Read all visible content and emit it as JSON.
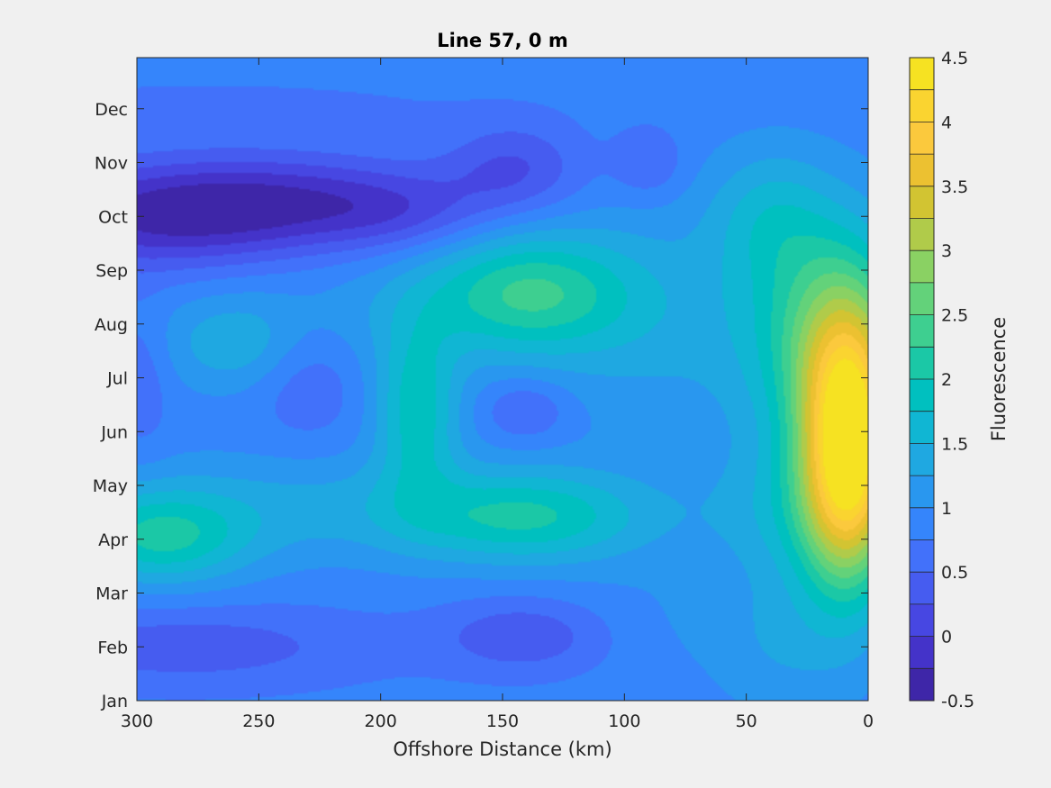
{
  "chart_data": {
    "type": "heatmap",
    "subtype": "filled-contour",
    "title": "Line 57, 0 m",
    "xlabel": "Offshore Distance (km)",
    "ylabel": "",
    "colorbar_label": "Fluorescence",
    "x_reversed": true,
    "xlim": [
      0,
      300
    ],
    "x_ticks": [
      300,
      250,
      200,
      150,
      100,
      50,
      0
    ],
    "y_ticks": [
      "Jan",
      "Feb",
      "Mar",
      "Apr",
      "May",
      "Jun",
      "Jul",
      "Aug",
      "Sep",
      "Oct",
      "Nov",
      "Dec"
    ],
    "y_tick_positions": [
      0,
      1,
      2,
      3,
      4,
      5,
      6,
      7,
      8,
      9,
      10,
      11
    ],
    "ylim": [
      0,
      11.95
    ],
    "clim": [
      -0.5,
      4.5
    ],
    "levels": [
      -0.5,
      -0.25,
      0,
      0.25,
      0.5,
      0.75,
      1,
      1.25,
      1.5,
      1.75,
      2,
      2.25,
      2.5,
      2.75,
      3,
      3.25,
      3.5,
      3.75,
      4,
      4.25,
      4.5
    ],
    "colorbar_ticks": [
      "4.5",
      "4",
      "3.5",
      "3",
      "2.5",
      "2",
      "1.5",
      "1",
      "0.5",
      "0",
      "-0.5"
    ],
    "colorbar_tick_values": [
      4.5,
      4,
      3.5,
      3,
      2.5,
      2,
      1.5,
      1,
      0.5,
      0,
      -0.5
    ],
    "colormap": [
      "#3e26a8",
      "#4433c9",
      "#4747e2",
      "#465cf0",
      "#4271fa",
      "#3585fb",
      "#2997ef",
      "#1fa8e1",
      "#10b6d3",
      "#00c0bf",
      "#1bc8a6",
      "#3ecf90",
      "#63d27a",
      "#8ad163",
      "#b0cb4a",
      "#d2c432",
      "#ecc131",
      "#fbc93d",
      "#fad430",
      "#f6e222"
    ],
    "background": 0.85,
    "features": [
      {
        "x": 290,
        "y": 9.0,
        "sx": 45,
        "sy": 0.7,
        "amp": -1.05
      },
      {
        "x": 230,
        "y": 9.3,
        "sx": 45,
        "sy": 0.6,
        "amp": -0.75
      },
      {
        "x": 190,
        "y": 9.0,
        "sx": 25,
        "sy": 0.5,
        "amp": -0.35
      },
      {
        "x": 145,
        "y": 9.9,
        "sx": 20,
        "sy": 0.6,
        "amp": -0.6
      },
      {
        "x": 90,
        "y": 10.0,
        "sx": 10,
        "sy": 0.45,
        "amp": -0.4
      },
      {
        "x": 280,
        "y": 1.0,
        "sx": 55,
        "sy": 0.55,
        "amp": -0.5
      },
      {
        "x": 140,
        "y": 1.2,
        "sx": 25,
        "sy": 0.5,
        "amp": -0.55
      },
      {
        "x": 270,
        "y": 11.0,
        "sx": 70,
        "sy": 0.35,
        "amp": -0.2
      },
      {
        "x": 290,
        "y": 3.0,
        "sx": 25,
        "sy": 0.6,
        "amp": 1.05
      },
      {
        "x": 230,
        "y": 3.6,
        "sx": 80,
        "sy": 0.7,
        "amp": 0.45
      },
      {
        "x": 140,
        "y": 3.4,
        "sx": 35,
        "sy": 0.6,
        "amp": 1.0
      },
      {
        "x": 185,
        "y": 5.4,
        "sx": 12,
        "sy": 1.1,
        "amp": 1.05
      },
      {
        "x": 140,
        "y": 7.6,
        "sx": 30,
        "sy": 0.8,
        "amp": 1.25
      },
      {
        "x": 260,
        "y": 6.6,
        "sx": 20,
        "sy": 0.6,
        "amp": 0.5
      },
      {
        "x": 85,
        "y": 7.0,
        "sx": 35,
        "sy": 1.6,
        "amp": 0.4
      },
      {
        "x": 40,
        "y": 9.0,
        "sx": 18,
        "sy": 0.9,
        "amp": 0.6
      },
      {
        "x": 200,
        "y": 7.2,
        "sx": 60,
        "sy": 0.8,
        "amp": 0.25
      },
      {
        "x": 8,
        "y": 4.6,
        "sx": 14,
        "sy": 1.7,
        "amp": 3.5
      },
      {
        "x": 15,
        "y": 6.8,
        "sx": 24,
        "sy": 1.5,
        "amp": 1.4
      },
      {
        "x": 30,
        "y": 3.5,
        "sx": 25,
        "sy": 1.0,
        "amp": 0.55
      },
      {
        "x": 140,
        "y": 5.4,
        "sx": 12,
        "sy": 0.4,
        "amp": -0.45
      },
      {
        "x": 230,
        "y": 6.0,
        "sx": 15,
        "sy": 0.8,
        "amp": -0.35
      },
      {
        "x": 298,
        "y": 6.0,
        "sx": 8,
        "sy": 1.0,
        "amp": -0.3
      },
      {
        "x": 85,
        "y": 1.5,
        "sx": 30,
        "sy": 0.8,
        "amp": 0.15
      },
      {
        "x": 35,
        "y": 1.0,
        "sx": 20,
        "sy": 1.0,
        "amp": 0.35
      }
    ]
  }
}
